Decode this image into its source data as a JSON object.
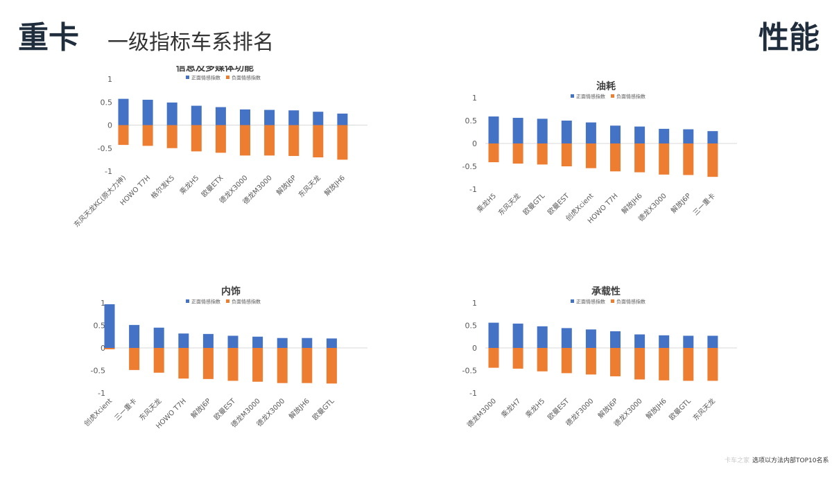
{
  "header": {
    "main_title": "重卡",
    "subtitle": "一级指标车系排名",
    "category": "性能"
  },
  "footer": {
    "left": "卡车之家",
    "right": "选项以方法内部TOP10名系"
  },
  "colors": {
    "positive": "#4472C4",
    "negative": "#ED7D31",
    "axis": "#d9d9d9",
    "text": "#595959"
  },
  "chart_data": [
    {
      "type": "bar",
      "title": "信息及多媒体功能",
      "ylim": [
        -1,
        1
      ],
      "yticks": [
        "1",
        "0.5",
        "0",
        "-0.5",
        "-1"
      ],
      "legend_position": "top",
      "categories": [
        "东风天龙KC(原大力神)",
        "HOWO T7H",
        "格尔发K5",
        "乘龙H5",
        "欧曼ETX",
        "德龙X3000",
        "德龙M3000",
        "解放J6P",
        "东风天龙",
        "解放JH6"
      ],
      "series": [
        {
          "name": "正面情感指数",
          "values": [
            0.57,
            0.55,
            0.49,
            0.42,
            0.39,
            0.34,
            0.33,
            0.32,
            0.29,
            0.25
          ]
        },
        {
          "name": "负面情感指数",
          "values": [
            -0.43,
            -0.45,
            -0.5,
            -0.57,
            -0.6,
            -0.66,
            -0.66,
            -0.67,
            -0.7,
            -0.75
          ]
        }
      ]
    },
    {
      "type": "bar",
      "title": "油耗",
      "ylim": [
        -1,
        1
      ],
      "yticks": [
        "1",
        "0.5",
        "0",
        "-0.5",
        "-1"
      ],
      "legend_position": "top",
      "categories": [
        "乘龙H5",
        "东风天龙",
        "欧曼GTL",
        "欧曼EST",
        "创虎Xcient",
        "HOWO T7H",
        "解放JH6",
        "德龙X3000",
        "解放J6P",
        "三一重卡"
      ],
      "series": [
        {
          "name": "正面情感指数",
          "values": [
            0.59,
            0.56,
            0.54,
            0.5,
            0.46,
            0.39,
            0.37,
            0.32,
            0.31,
            0.27
          ]
        },
        {
          "name": "负面情感指数",
          "values": [
            -0.41,
            -0.44,
            -0.46,
            -0.5,
            -0.54,
            -0.61,
            -0.63,
            -0.68,
            -0.69,
            -0.73
          ]
        }
      ]
    },
    {
      "type": "bar",
      "title": "内饰",
      "ylim": [
        -1,
        1
      ],
      "yticks": [
        "1",
        "0.5",
        "0",
        "-0.5",
        "-1"
      ],
      "legend_position": "top",
      "categories": [
        "创虎Xcient",
        "三一重卡",
        "东风天龙",
        "HOWO T7H",
        "解放J6P",
        "欧曼EST",
        "德龙M3000",
        "德龙X3000",
        "解放JH6",
        "欧曼GTL"
      ],
      "series": [
        {
          "name": "正面情感指数",
          "values": [
            0.97,
            0.51,
            0.45,
            0.32,
            0.31,
            0.27,
            0.25,
            0.22,
            0.22,
            0.21
          ]
        },
        {
          "name": "负面情感指数",
          "values": [
            -0.03,
            -0.49,
            -0.55,
            -0.68,
            -0.69,
            -0.73,
            -0.75,
            -0.78,
            -0.78,
            -0.79
          ]
        }
      ]
    },
    {
      "type": "bar",
      "title": "承载性",
      "ylim": [
        -1,
        1
      ],
      "yticks": [
        "1",
        "0.5",
        "0",
        "-0.5",
        "-1"
      ],
      "legend_position": "top",
      "categories": [
        "德龙M3000",
        "乘龙H7",
        "乘龙H5",
        "欧曼EST",
        "德龙F3000",
        "解放J6P",
        "德龙X3000",
        "解放JH6",
        "欧曼GTL",
        "东风天龙"
      ],
      "series": [
        {
          "name": "正面情感指数",
          "values": [
            0.56,
            0.54,
            0.48,
            0.44,
            0.41,
            0.37,
            0.3,
            0.28,
            0.27,
            0.27
          ]
        },
        {
          "name": "负面情感指数",
          "values": [
            -0.44,
            -0.46,
            -0.52,
            -0.56,
            -0.59,
            -0.63,
            -0.7,
            -0.72,
            -0.73,
            -0.73
          ]
        }
      ]
    }
  ]
}
